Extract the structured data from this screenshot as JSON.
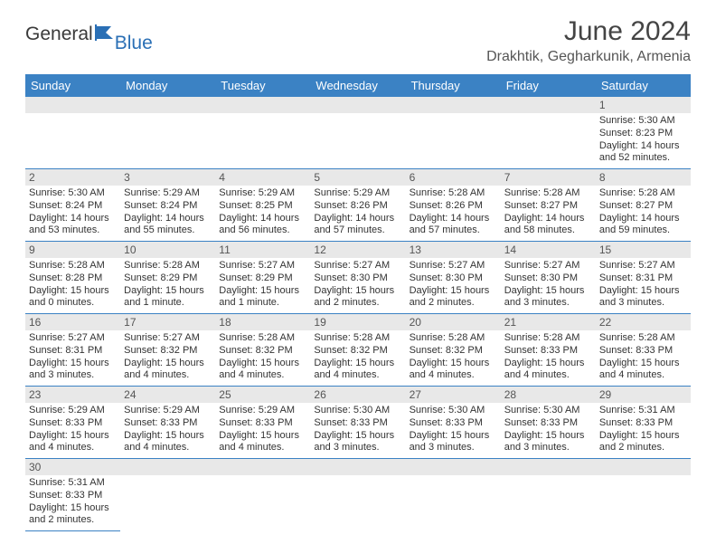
{
  "logo": {
    "general": "General",
    "blue": "Blue"
  },
  "title": "June 2024",
  "subtitle": "Drakhtik, Gegharkunik, Armenia",
  "colors": {
    "header_bg": "#3b82c4",
    "header_fg": "#ffffff",
    "daynum_bg": "#e8e8e8",
    "border": "#3b82c4",
    "logo_gray": "#3a3a3a",
    "logo_blue": "#2a6fb5"
  },
  "weekdays": [
    "Sunday",
    "Monday",
    "Tuesday",
    "Wednesday",
    "Thursday",
    "Friday",
    "Saturday"
  ],
  "weeks": [
    [
      null,
      null,
      null,
      null,
      null,
      null,
      {
        "n": "1",
        "sr": "Sunrise: 5:30 AM",
        "ss": "Sunset: 8:23 PM",
        "dl": "Daylight: 14 hours and 52 minutes."
      }
    ],
    [
      {
        "n": "2",
        "sr": "Sunrise: 5:30 AM",
        "ss": "Sunset: 8:24 PM",
        "dl": "Daylight: 14 hours and 53 minutes."
      },
      {
        "n": "3",
        "sr": "Sunrise: 5:29 AM",
        "ss": "Sunset: 8:24 PM",
        "dl": "Daylight: 14 hours and 55 minutes."
      },
      {
        "n": "4",
        "sr": "Sunrise: 5:29 AM",
        "ss": "Sunset: 8:25 PM",
        "dl": "Daylight: 14 hours and 56 minutes."
      },
      {
        "n": "5",
        "sr": "Sunrise: 5:29 AM",
        "ss": "Sunset: 8:26 PM",
        "dl": "Daylight: 14 hours and 57 minutes."
      },
      {
        "n": "6",
        "sr": "Sunrise: 5:28 AM",
        "ss": "Sunset: 8:26 PM",
        "dl": "Daylight: 14 hours and 57 minutes."
      },
      {
        "n": "7",
        "sr": "Sunrise: 5:28 AM",
        "ss": "Sunset: 8:27 PM",
        "dl": "Daylight: 14 hours and 58 minutes."
      },
      {
        "n": "8",
        "sr": "Sunrise: 5:28 AM",
        "ss": "Sunset: 8:27 PM",
        "dl": "Daylight: 14 hours and 59 minutes."
      }
    ],
    [
      {
        "n": "9",
        "sr": "Sunrise: 5:28 AM",
        "ss": "Sunset: 8:28 PM",
        "dl": "Daylight: 15 hours and 0 minutes."
      },
      {
        "n": "10",
        "sr": "Sunrise: 5:28 AM",
        "ss": "Sunset: 8:29 PM",
        "dl": "Daylight: 15 hours and 1 minute."
      },
      {
        "n": "11",
        "sr": "Sunrise: 5:27 AM",
        "ss": "Sunset: 8:29 PM",
        "dl": "Daylight: 15 hours and 1 minute."
      },
      {
        "n": "12",
        "sr": "Sunrise: 5:27 AM",
        "ss": "Sunset: 8:30 PM",
        "dl": "Daylight: 15 hours and 2 minutes."
      },
      {
        "n": "13",
        "sr": "Sunrise: 5:27 AM",
        "ss": "Sunset: 8:30 PM",
        "dl": "Daylight: 15 hours and 2 minutes."
      },
      {
        "n": "14",
        "sr": "Sunrise: 5:27 AM",
        "ss": "Sunset: 8:30 PM",
        "dl": "Daylight: 15 hours and 3 minutes."
      },
      {
        "n": "15",
        "sr": "Sunrise: 5:27 AM",
        "ss": "Sunset: 8:31 PM",
        "dl": "Daylight: 15 hours and 3 minutes."
      }
    ],
    [
      {
        "n": "16",
        "sr": "Sunrise: 5:27 AM",
        "ss": "Sunset: 8:31 PM",
        "dl": "Daylight: 15 hours and 3 minutes."
      },
      {
        "n": "17",
        "sr": "Sunrise: 5:27 AM",
        "ss": "Sunset: 8:32 PM",
        "dl": "Daylight: 15 hours and 4 minutes."
      },
      {
        "n": "18",
        "sr": "Sunrise: 5:28 AM",
        "ss": "Sunset: 8:32 PM",
        "dl": "Daylight: 15 hours and 4 minutes."
      },
      {
        "n": "19",
        "sr": "Sunrise: 5:28 AM",
        "ss": "Sunset: 8:32 PM",
        "dl": "Daylight: 15 hours and 4 minutes."
      },
      {
        "n": "20",
        "sr": "Sunrise: 5:28 AM",
        "ss": "Sunset: 8:32 PM",
        "dl": "Daylight: 15 hours and 4 minutes."
      },
      {
        "n": "21",
        "sr": "Sunrise: 5:28 AM",
        "ss": "Sunset: 8:33 PM",
        "dl": "Daylight: 15 hours and 4 minutes."
      },
      {
        "n": "22",
        "sr": "Sunrise: 5:28 AM",
        "ss": "Sunset: 8:33 PM",
        "dl": "Daylight: 15 hours and 4 minutes."
      }
    ],
    [
      {
        "n": "23",
        "sr": "Sunrise: 5:29 AM",
        "ss": "Sunset: 8:33 PM",
        "dl": "Daylight: 15 hours and 4 minutes."
      },
      {
        "n": "24",
        "sr": "Sunrise: 5:29 AM",
        "ss": "Sunset: 8:33 PM",
        "dl": "Daylight: 15 hours and 4 minutes."
      },
      {
        "n": "25",
        "sr": "Sunrise: 5:29 AM",
        "ss": "Sunset: 8:33 PM",
        "dl": "Daylight: 15 hours and 4 minutes."
      },
      {
        "n": "26",
        "sr": "Sunrise: 5:30 AM",
        "ss": "Sunset: 8:33 PM",
        "dl": "Daylight: 15 hours and 3 minutes."
      },
      {
        "n": "27",
        "sr": "Sunrise: 5:30 AM",
        "ss": "Sunset: 8:33 PM",
        "dl": "Daylight: 15 hours and 3 minutes."
      },
      {
        "n": "28",
        "sr": "Sunrise: 5:30 AM",
        "ss": "Sunset: 8:33 PM",
        "dl": "Daylight: 15 hours and 3 minutes."
      },
      {
        "n": "29",
        "sr": "Sunrise: 5:31 AM",
        "ss": "Sunset: 8:33 PM",
        "dl": "Daylight: 15 hours and 2 minutes."
      }
    ],
    [
      {
        "n": "30",
        "sr": "Sunrise: 5:31 AM",
        "ss": "Sunset: 8:33 PM",
        "dl": "Daylight: 15 hours and 2 minutes."
      },
      null,
      null,
      null,
      null,
      null,
      null
    ]
  ]
}
